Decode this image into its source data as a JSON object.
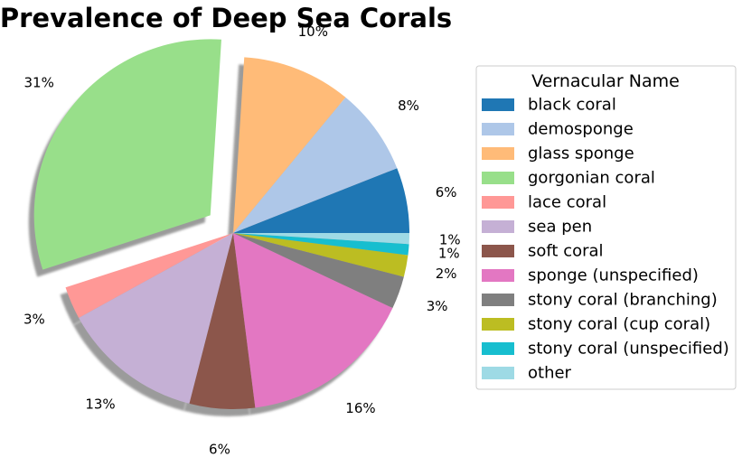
{
  "chart_data": {
    "type": "pie",
    "title": "Prevalence of Deep Sea Corals",
    "legend_title": "Vernacular Name",
    "legend_position": "right",
    "start_angle_deg": 0,
    "direction": "counterclockwise",
    "shadow": true,
    "slices": [
      {
        "label": "black coral",
        "value": 6,
        "pct_label": "6%",
        "color": "#1f77b4",
        "explode": false
      },
      {
        "label": "demosponge",
        "value": 8,
        "pct_label": "8%",
        "color": "#aec7e8",
        "explode": false
      },
      {
        "label": "glass sponge",
        "value": 10,
        "pct_label": "10%",
        "color": "#ffbb78",
        "explode": false
      },
      {
        "label": "gorgonian coral",
        "value": 31,
        "pct_label": "31%",
        "color": "#98df8a",
        "explode": true
      },
      {
        "label": "lace coral",
        "value": 3,
        "pct_label": "3%",
        "color": "#ff9896",
        "explode": false
      },
      {
        "label": "sea pen",
        "value": 13,
        "pct_label": "13%",
        "color": "#c5b0d5",
        "explode": false
      },
      {
        "label": "soft coral",
        "value": 6,
        "pct_label": "6%",
        "color": "#8c564b",
        "explode": false
      },
      {
        "label": "sponge (unspecified)",
        "value": 16,
        "pct_label": "16%",
        "color": "#e377c2",
        "explode": false
      },
      {
        "label": "stony coral (branching)",
        "value": 3,
        "pct_label": "3%",
        "color": "#7f7f7f",
        "explode": false
      },
      {
        "label": "stony coral (cup coral)",
        "value": 2,
        "pct_label": "2%",
        "color": "#bcbd22",
        "explode": false
      },
      {
        "label": "stony coral (unspecified)",
        "value": 1,
        "pct_label": "1%",
        "color": "#17becf",
        "explode": false
      },
      {
        "label": "other",
        "value": 1,
        "pct_label": "1%",
        "color": "#9edae5",
        "explode": false
      }
    ]
  }
}
